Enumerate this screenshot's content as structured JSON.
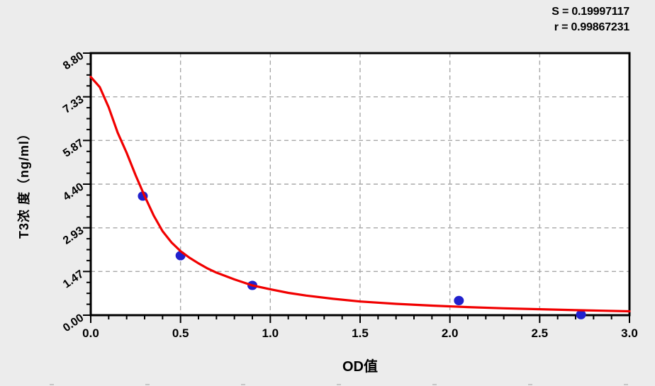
{
  "stats": {
    "s_label": "S = 0.19997117",
    "r_label": "r = 0.99867231"
  },
  "chart_data": {
    "type": "scatter",
    "title": "",
    "xlabel": "OD值",
    "ylabel": "T3浓 度（ng/ml）",
    "xlim": [
      0,
      3.0
    ],
    "ylim": [
      0,
      8.8
    ],
    "x_major_ticks": [
      0,
      0.5,
      1.0,
      1.5,
      2.0,
      2.5,
      3.0
    ],
    "x_tick_labels": [
      "0.0",
      "0.5",
      "1.0",
      "1.5",
      "2.0",
      "2.5",
      "3.0"
    ],
    "x_minor_step": 0.1,
    "y_major_ticks": [
      0,
      1.4667,
      2.9333,
      4.4,
      5.8667,
      7.3333,
      8.8
    ],
    "y_tick_labels": [
      "0.00",
      "1.47",
      "2.93",
      "4.40",
      "5.87",
      "7.33",
      "8.80"
    ],
    "y_minor_divisions": 4,
    "grid": "dashed gray lines at interior major ticks, both axes",
    "legend": "none",
    "statistics": {
      "S": 0.19997117,
      "r": 0.99867231
    },
    "series": [
      {
        "name": "standard-points",
        "type": "scatter",
        "color": "#2121cd",
        "points": [
          [
            0.29,
            4.0
          ],
          [
            0.5,
            2.0
          ],
          [
            0.9,
            1.0
          ],
          [
            2.05,
            0.49
          ],
          [
            2.73,
            0.02
          ]
        ]
      },
      {
        "name": "fit-curve",
        "type": "line",
        "color": "#f10000",
        "points": [
          [
            0,
            8.0
          ],
          [
            0.05,
            7.66
          ],
          [
            0.1,
            6.98
          ],
          [
            0.15,
            6.13
          ],
          [
            0.2,
            5.45
          ],
          [
            0.25,
            4.7
          ],
          [
            0.3,
            4.0
          ],
          [
            0.35,
            3.35
          ],
          [
            0.4,
            2.82
          ],
          [
            0.45,
            2.44
          ],
          [
            0.5,
            2.15
          ],
          [
            0.55,
            1.93
          ],
          [
            0.6,
            1.74
          ],
          [
            0.65,
            1.57
          ],
          [
            0.7,
            1.43
          ],
          [
            0.8,
            1.2
          ],
          [
            0.9,
            1.0
          ],
          [
            1.0,
            0.87
          ],
          [
            1.1,
            0.75
          ],
          [
            1.2,
            0.66
          ],
          [
            1.35,
            0.55
          ],
          [
            1.5,
            0.46
          ],
          [
            1.7,
            0.38
          ],
          [
            1.9,
            0.32
          ],
          [
            2.1,
            0.27
          ],
          [
            2.3,
            0.23
          ],
          [
            2.5,
            0.2
          ],
          [
            2.7,
            0.17
          ],
          [
            2.85,
            0.15
          ],
          [
            3.0,
            0.13
          ]
        ]
      }
    ],
    "colors": {
      "curve": "#f10000",
      "points": "#2121cd",
      "grid": "#a8a8a8",
      "axis": "#000000",
      "plot_background": "#ffffff",
      "page_background": "#ececec"
    }
  }
}
